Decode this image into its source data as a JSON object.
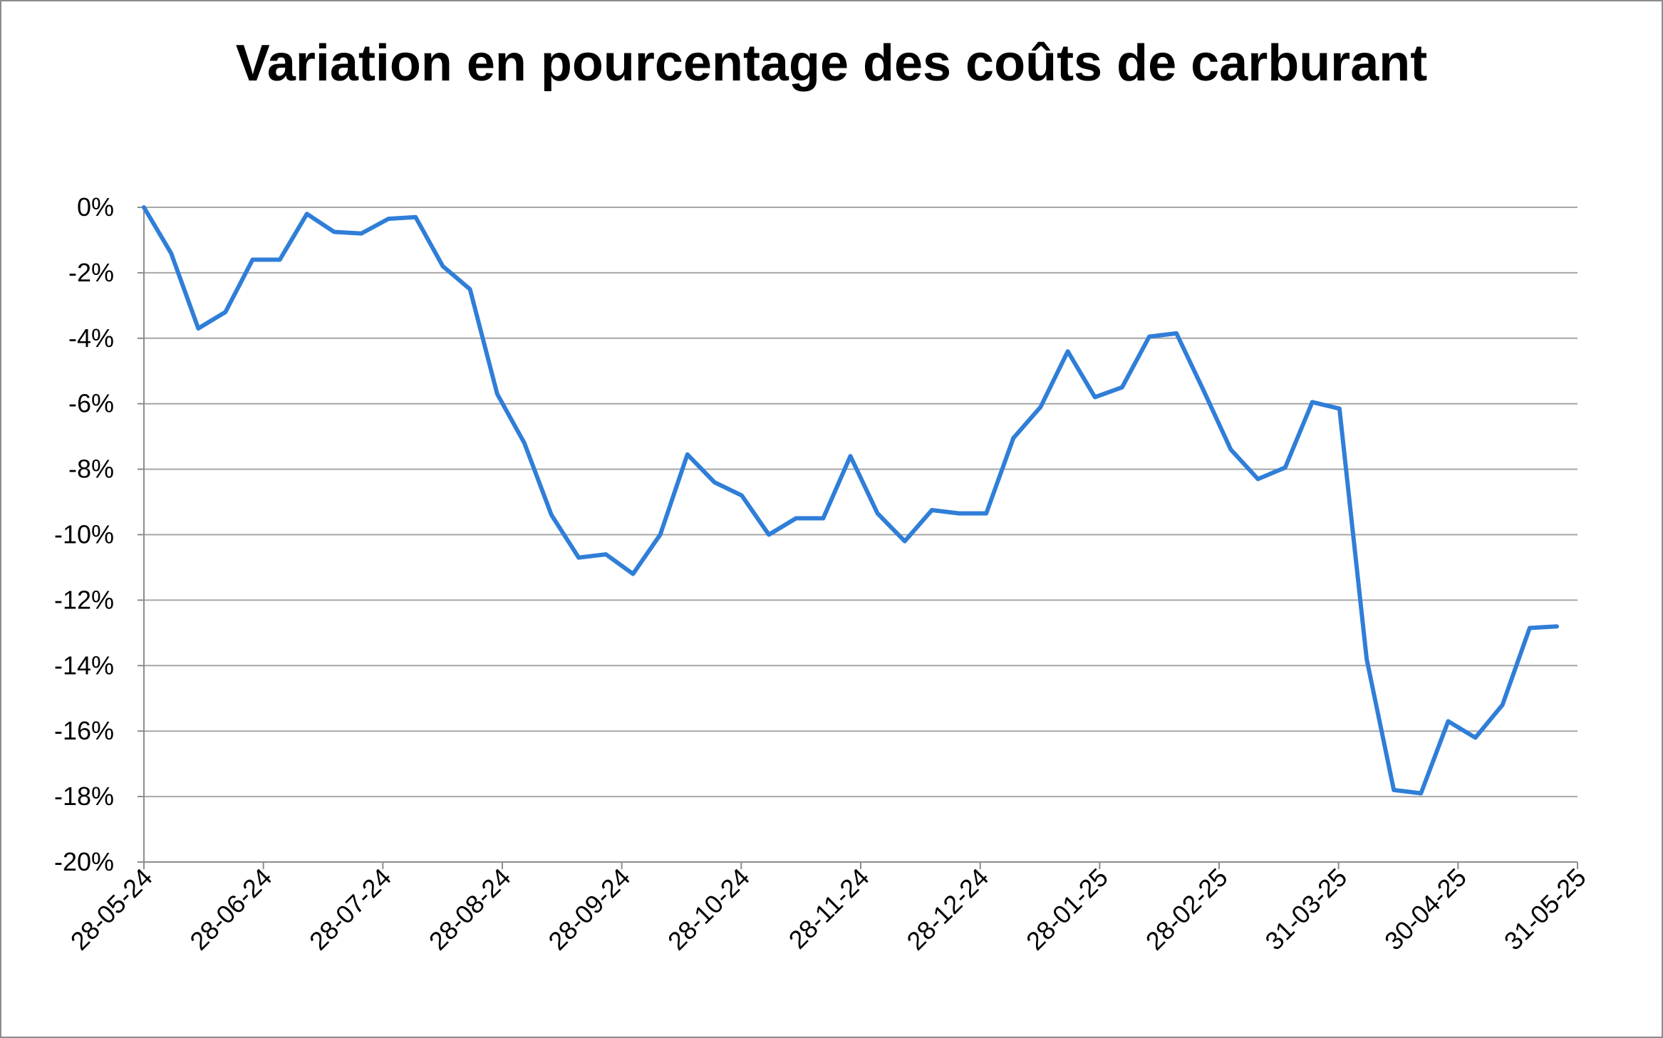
{
  "chart_data": {
    "type": "line",
    "title": "Variation en pourcentage des coûts de carburant",
    "xlabel": "",
    "ylabel": "",
    "ylim": [
      -20,
      0
    ],
    "yticks": [
      "0%",
      "-2%",
      "-4%",
      "-6%",
      "-8%",
      "-10%",
      "-12%",
      "-14%",
      "-16%",
      "-18%",
      "-20%"
    ],
    "x_tick_labels": [
      "28-05-24",
      "28-06-24",
      "28-07-24",
      "28-08-24",
      "28-09-24",
      "28-10-24",
      "28-11-24",
      "28-12-24",
      "28-01-25",
      "28-02-25",
      "31-03-25",
      "30-04-25",
      "31-05-25"
    ],
    "grid": "horizontal",
    "legend": "none",
    "line_color": "#2f7ed8",
    "series": [
      {
        "values": [
          0,
          -1.4,
          -3.7,
          -3.2,
          -1.6,
          -1.6,
          -0.2,
          -0.75,
          -0.8,
          -0.35,
          -0.3,
          -1.8,
          -2.5,
          -5.7,
          -7.2,
          -9.4,
          -10.7,
          -10.6,
          -11.2,
          -10.0,
          -7.55,
          -8.4,
          -8.8,
          -10.0,
          -9.5,
          -9.5,
          -7.6,
          -9.35,
          -10.2,
          -9.25,
          -9.35,
          -9.35,
          -7.05,
          -6.1,
          -4.4,
          -5.8,
          -5.5,
          -3.95,
          -3.85,
          -5.6,
          -7.4,
          -8.3,
          -7.95,
          -5.95,
          -6.15,
          -13.8,
          -17.8,
          -17.9,
          -15.7,
          -16.2,
          -15.2,
          -12.85,
          -12.8
        ]
      }
    ]
  }
}
